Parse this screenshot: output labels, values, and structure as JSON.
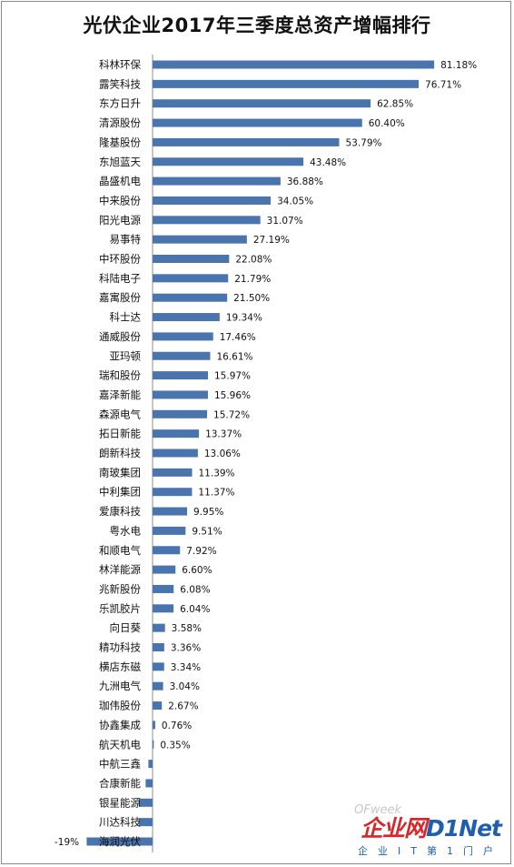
{
  "chart_data": {
    "type": "bar",
    "orientation": "horizontal",
    "title": "光伏企业2017年三季度总资产增幅排行",
    "categories": [
      "科林环保",
      "露笑科技",
      "东方日升",
      "清源股份",
      "隆基股份",
      "东旭蓝天",
      "晶盛机电",
      "中来股份",
      "阳光电源",
      "易事特",
      "中环股份",
      "科陆电子",
      "嘉寓股份",
      "科士达",
      "通威股份",
      "亚玛顿",
      "瑞和股份",
      "嘉泽新能",
      "森源电气",
      "拓日新能",
      "朗新科技",
      "南玻集团",
      "中利集团",
      "爱康科技",
      "粤水电",
      "和顺电气",
      "林洋能源",
      "兆新股份",
      "乐凯胶片",
      "向日葵",
      "精功科技",
      "横店东磁",
      "九洲电气",
      "珈伟股份",
      "协鑫集成",
      "航天机电",
      "中航三鑫",
      "合康新能",
      "银星能源",
      "川达科技",
      "海润光伏"
    ],
    "values": [
      81.18,
      76.71,
      62.85,
      60.4,
      53.79,
      43.48,
      36.88,
      34.05,
      31.07,
      27.19,
      22.08,
      21.79,
      21.5,
      19.34,
      17.46,
      16.61,
      15.97,
      15.96,
      15.72,
      13.37,
      13.06,
      11.39,
      11.37,
      9.95,
      9.51,
      7.92,
      6.6,
      6.08,
      6.04,
      3.58,
      3.36,
      3.34,
      3.04,
      2.67,
      0.76,
      0.35,
      -1.2,
      -2.0,
      -4.0,
      -4.0,
      -19.0
    ],
    "labels": [
      "81.18%",
      "76.71%",
      "62.85%",
      "60.40%",
      "53.79%",
      "43.48%",
      "36.88%",
      "34.05%",
      "31.07%",
      "27.19%",
      "22.08%",
      "21.79%",
      "21.50%",
      "19.34%",
      "17.46%",
      "16.61%",
      "15.97%",
      "15.96%",
      "15.72%",
      "13.37%",
      "13.06%",
      "11.39%",
      "11.37%",
      "9.95%",
      "9.51%",
      "7.92%",
      "6.60%",
      "6.08%",
      "6.04%",
      "3.58%",
      "3.36%",
      "3.34%",
      "3.04%",
      "2.67%",
      "0.76%",
      "0.35%",
      "",
      "",
      "",
      "",
      "-19%"
    ],
    "xlim": [
      -19,
      82
    ],
    "bar_color": "#4a74ad",
    "grid": false,
    "legend": "none"
  },
  "watermark": {
    "site_part1": "企业网",
    "site_part2": "D1Net",
    "subtitle": "企业IT第1门户",
    "ofweek": "OFweek"
  }
}
